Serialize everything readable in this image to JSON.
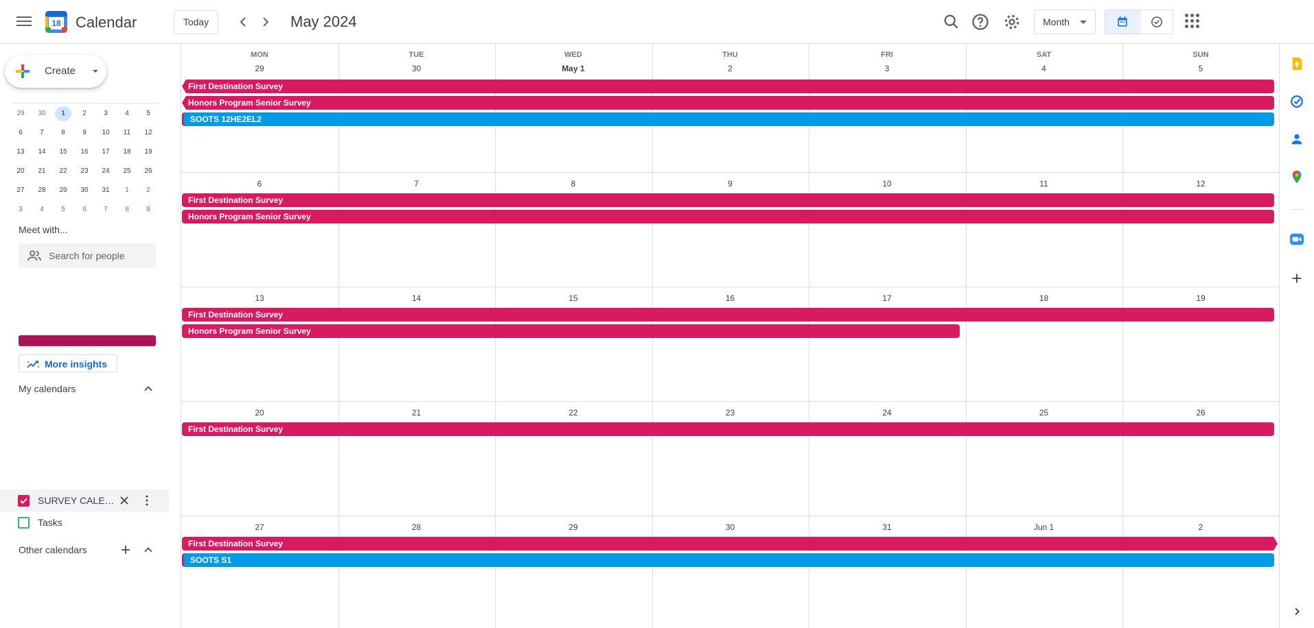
{
  "header": {
    "app_title": "Calendar",
    "logo_day": "18",
    "today_label": "Today",
    "month_title": "May 2024",
    "view_label": "Month"
  },
  "sidebar": {
    "create_label": "Create",
    "mini_calendar": [
      [
        "29",
        "30",
        "1",
        "2",
        "3",
        "4",
        "5"
      ],
      [
        "6",
        "7",
        "8",
        "9",
        "10",
        "11",
        "12"
      ],
      [
        "13",
        "14",
        "15",
        "16",
        "17",
        "18",
        "19"
      ],
      [
        "20",
        "21",
        "22",
        "23",
        "24",
        "25",
        "26"
      ],
      [
        "27",
        "28",
        "29",
        "30",
        "31",
        "1",
        "2"
      ],
      [
        "3",
        "4",
        "5",
        "6",
        "7",
        "8",
        "9"
      ]
    ],
    "meet_with": "Meet with...",
    "search_people_placeholder": "Search for people",
    "more_insights": "More insights",
    "my_calendars": "My calendars",
    "calendars": [
      {
        "name": "SURVEY CALENDAR",
        "color": "#d81b60",
        "checked": true
      },
      {
        "name": "Tasks",
        "color": "#33b679",
        "checked": false
      }
    ],
    "other_calendars": "Other calendars"
  },
  "grid": {
    "weekdays": [
      "MON",
      "TUE",
      "WED",
      "THU",
      "FRI",
      "SAT",
      "SUN"
    ],
    "weeks": [
      [
        "29",
        "30",
        "May 1",
        "2",
        "3",
        "4",
        "5"
      ],
      [
        "6",
        "7",
        "8",
        "9",
        "10",
        "11",
        "12"
      ],
      [
        "13",
        "14",
        "15",
        "16",
        "17",
        "18",
        "19"
      ],
      [
        "20",
        "21",
        "22",
        "23",
        "24",
        "25",
        "26"
      ],
      [
        "27",
        "28",
        "29",
        "30",
        "31",
        "Jun 1",
        "2"
      ]
    ],
    "events": {
      "first_destination": "First Destination Survey",
      "honors": "Honors Program Senior Survey",
      "soots_12": "SOOTS 12HE2EL2",
      "soots_s1": "SOOTS S1"
    }
  },
  "colors": {
    "survey_pink": "#d81b60",
    "soots_blue": "#039be5",
    "insight_bar": "#ad1457",
    "accent_blue": "#1a73e8"
  }
}
